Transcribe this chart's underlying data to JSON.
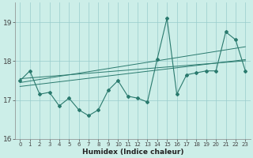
{
  "xlabel": "Humidex (Indice chaleur)",
  "x_values": [
    0,
    1,
    2,
    3,
    4,
    5,
    6,
    7,
    8,
    9,
    10,
    11,
    12,
    13,
    14,
    15,
    16,
    17,
    18,
    19,
    20,
    21,
    22,
    23
  ],
  "y_main": [
    17.5,
    17.75,
    17.15,
    17.2,
    16.85,
    17.05,
    16.75,
    16.6,
    16.75,
    17.25,
    17.5,
    17.1,
    17.05,
    16.95,
    18.05,
    19.1,
    17.15,
    17.65,
    17.7,
    17.75,
    17.75,
    18.75,
    18.55,
    17.75
  ],
  "y_trend1": [
    17.55,
    17.57,
    17.59,
    17.61,
    17.63,
    17.65,
    17.67,
    17.69,
    17.71,
    17.73,
    17.75,
    17.77,
    17.79,
    17.81,
    17.83,
    17.85,
    17.87,
    17.89,
    17.91,
    17.93,
    17.95,
    17.97,
    17.99,
    18.01
  ],
  "y_trend2": [
    17.45,
    17.49,
    17.53,
    17.57,
    17.61,
    17.65,
    17.69,
    17.73,
    17.77,
    17.81,
    17.85,
    17.89,
    17.93,
    17.97,
    18.01,
    18.05,
    18.09,
    18.13,
    18.17,
    18.21,
    18.25,
    18.29,
    18.33,
    18.37
  ],
  "y_trend3": [
    17.35,
    17.38,
    17.41,
    17.44,
    17.47,
    17.5,
    17.53,
    17.56,
    17.59,
    17.62,
    17.65,
    17.68,
    17.71,
    17.74,
    17.77,
    17.8,
    17.83,
    17.86,
    17.89,
    17.92,
    17.95,
    17.98,
    18.01,
    18.04
  ],
  "line_color": "#2a7a6e",
  "bg_color": "#cceee8",
  "grid_color": "#99cccc",
  "ylim": [
    16.0,
    19.5
  ],
  "yticks": [
    16,
    17,
    18,
    19
  ],
  "xlim": [
    -0.5,
    23.5
  ]
}
